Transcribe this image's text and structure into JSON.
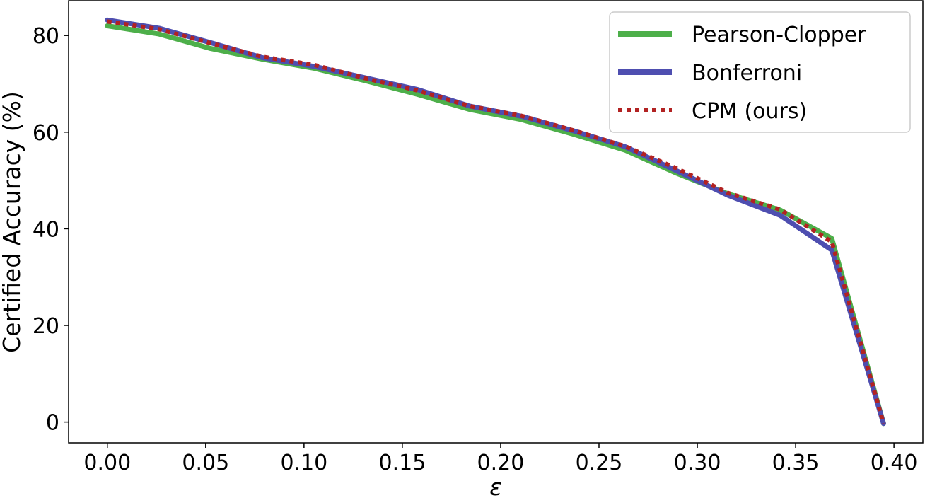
{
  "chart_data": {
    "type": "line",
    "xlabel": "ε",
    "ylabel": "Certified Accuracy (%)",
    "xlim": [
      -0.0197,
      0.4147
    ],
    "ylim": [
      -4.3,
      87.2
    ],
    "x_ticks": [
      0.0,
      0.05,
      0.1,
      0.15,
      0.2,
      0.25,
      0.3,
      0.35,
      0.4
    ],
    "x_tick_labels": [
      "0.00",
      "0.05",
      "0.10",
      "0.15",
      "0.20",
      "0.25",
      "0.30",
      "0.35",
      "0.40"
    ],
    "y_ticks": [
      0,
      20,
      40,
      60,
      80
    ],
    "y_tick_labels": [
      "0",
      "20",
      "40",
      "60",
      "80"
    ],
    "grid": false,
    "legend_position": "top-right",
    "x": [
      0.0,
      0.0263,
      0.0526,
      0.0789,
      0.1053,
      0.1316,
      0.1579,
      0.1842,
      0.2105,
      0.2368,
      0.2632,
      0.2895,
      0.3158,
      0.3421,
      0.3684,
      0.3947
    ],
    "series": [
      {
        "name": "Pearson-Clopper",
        "color": "#4daf4a",
        "style": "solid",
        "values": [
          82.0,
          80.3,
          77.3,
          75.1,
          73.2,
          70.6,
          67.8,
          64.7,
          62.6,
          59.6,
          56.3,
          51.5,
          47.2,
          43.9,
          38.0,
          -0.3
        ]
      },
      {
        "name": "Bonferroni",
        "color": "#4e4eb0",
        "style": "solid",
        "values": [
          83.2,
          81.5,
          78.5,
          75.4,
          73.6,
          71.2,
          68.8,
          65.4,
          63.3,
          60.3,
          57.0,
          52.0,
          46.9,
          42.8,
          35.6,
          -0.3
        ]
      },
      {
        "name": "CPM (ours)",
        "color": "#b22222",
        "style": "dotted",
        "values": [
          82.9,
          81.3,
          78.4,
          75.6,
          73.9,
          71.1,
          68.6,
          65.4,
          63.4,
          60.4,
          57.1,
          52.5,
          47.4,
          44.0,
          37.3,
          -0.3
        ]
      }
    ]
  }
}
